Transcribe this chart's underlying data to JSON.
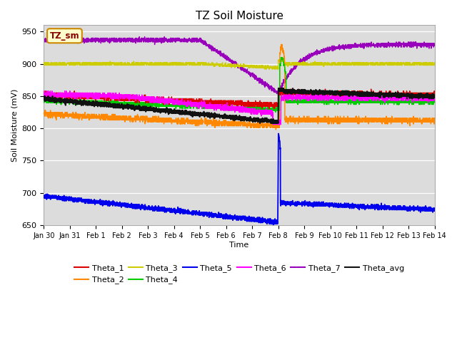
{
  "title": "TZ Soil Moisture",
  "xlabel": "Time",
  "ylabel": "Soil Moisture (mV)",
  "ylim": [
    650,
    960
  ],
  "yticks": [
    650,
    700,
    750,
    800,
    850,
    900,
    950
  ],
  "xtick_labels": [
    "Jan 30",
    "Jan 31",
    "Feb 1",
    "Feb 2",
    "Feb 3",
    "Feb 4",
    "Feb 5",
    "Feb 6",
    "Feb 7",
    "Feb 8",
    "Feb 9",
    "Feb 10",
    "Feb 11",
    "Feb 12",
    "Feb 13",
    "Feb 14"
  ],
  "background_color": "#dcdcdc",
  "legend_box_color": "#ffffcc",
  "legend_box_text": "TZ_sm",
  "colors": {
    "Theta_1": "#dd0000",
    "Theta_2": "#ff8800",
    "Theta_3": "#cccc00",
    "Theta_4": "#00cc00",
    "Theta_5": "#0000ee",
    "Theta_6": "#ff00ff",
    "Theta_7": "#9900bb",
    "Theta_avg": "#111111"
  }
}
